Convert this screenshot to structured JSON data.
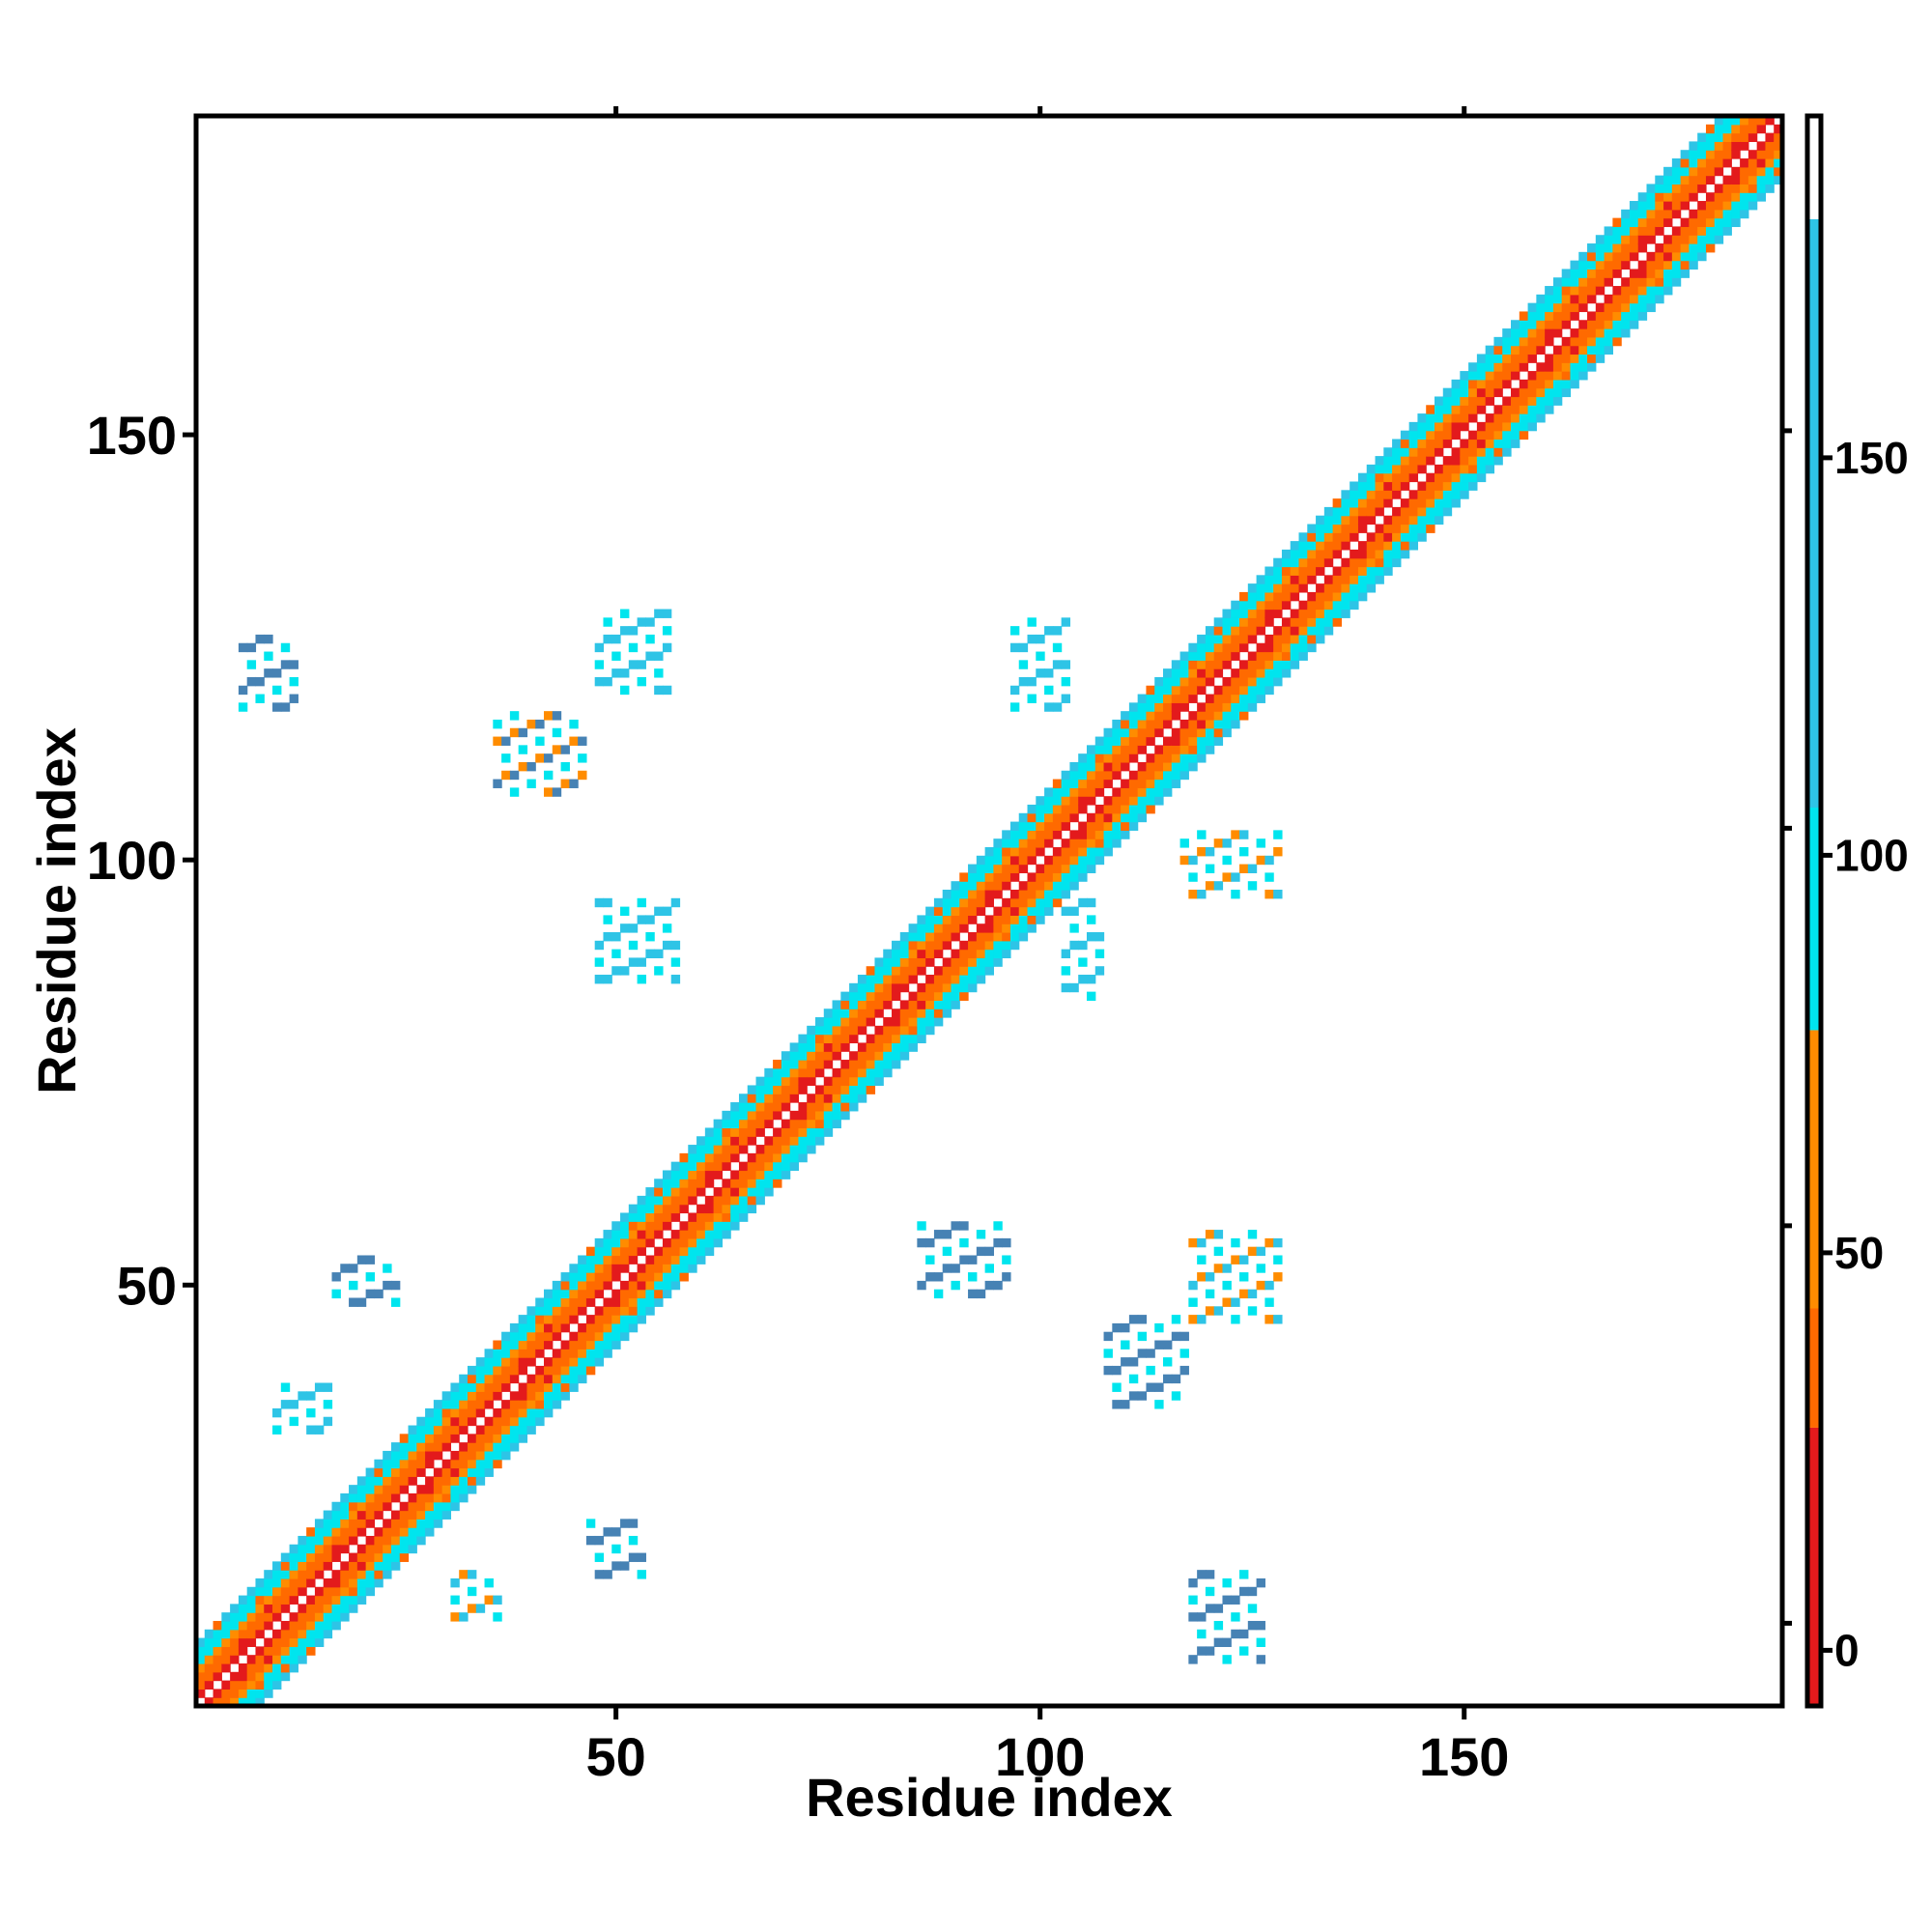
{
  "chart_data": {
    "type": "heatmap",
    "xlabel": "Residue index",
    "ylabel": "Residue index",
    "xlim": [
      1,
      187
    ],
    "ylim": [
      1,
      187
    ],
    "x_ticks": [
      50,
      100,
      150
    ],
    "y_ticks": [
      50,
      100,
      150
    ],
    "colorbar": {
      "ticks": [
        0,
        50,
        100,
        150
      ],
      "range": [
        -7,
        193
      ],
      "bands": [
        {
          "from": -7,
          "to": 28,
          "color": "#e31a1c"
        },
        {
          "from": 28,
          "to": 43,
          "color": "#ff6a00"
        },
        {
          "from": 43,
          "to": 78,
          "color": "#ff8c00"
        },
        {
          "from": 78,
          "to": 106,
          "color": "#00e5ee"
        },
        {
          "from": 106,
          "to": 180,
          "color": "#2ec4e6"
        },
        {
          "from": 180,
          "to": 193,
          "color": "#ffffff"
        }
      ]
    },
    "diagonal_band": {
      "from": 1,
      "to": 187,
      "half_width": 7
    },
    "series": [
      {
        "kind": "band-cells",
        "color": "#e31a1c",
        "offsets": [
          1
        ]
      },
      {
        "kind": "band-cells",
        "color": "#ff6a00",
        "offsets": [
          2,
          3
        ]
      },
      {
        "kind": "band-cells",
        "color": "#ff8c00",
        "offsets": [
          4
        ]
      },
      {
        "kind": "band-cells",
        "color": "#00e5ee",
        "offsets": [
          5,
          6
        ]
      },
      {
        "kind": "band-cells",
        "color": "#2ec4e6",
        "offsets": [
          7
        ]
      }
    ],
    "off_diagonal_clusters": [
      {
        "x": [
          6,
          12
        ],
        "y": [
          118,
          126
        ],
        "color": "#4682b4"
      },
      {
        "x": [
          36,
          46
        ],
        "y": [
          108,
          117
        ],
        "color": "#4682b4"
      },
      {
        "x": [
          48,
          56
        ],
        "y": [
          120,
          129
        ],
        "color": "#2ec4e6"
      },
      {
        "x": [
          48,
          57
        ],
        "y": [
          86,
          95
        ],
        "color": "#2ec4e6"
      },
      {
        "x": [
          97,
          103
        ],
        "y": [
          118,
          128
        ],
        "color": "#2ec4e6"
      },
      {
        "x": [
          117,
          128
        ],
        "y": [
          96,
          103
        ],
        "color": "#2ec4e6"
      },
      {
        "x": [
          103,
          107
        ],
        "y": [
          84,
          95
        ],
        "color": "#2ec4e6"
      },
      {
        "x": [
          86,
          96
        ],
        "y": [
          49,
          57
        ],
        "color": "#4682b4"
      },
      {
        "x": [
          108,
          117
        ],
        "y": [
          36,
          46
        ],
        "color": "#4682b4"
      },
      {
        "x": [
          118,
          128
        ],
        "y": [
          46,
          56
        ],
        "color": "#2ec4e6"
      },
      {
        "x": [
          118,
          126
        ],
        "y": [
          6,
          16
        ],
        "color": "#4682b4"
      },
      {
        "x": [
          17,
          24
        ],
        "y": [
          48,
          53
        ],
        "color": "#4682b4"
      },
      {
        "x": [
          10,
          16
        ],
        "y": [
          33,
          38
        ],
        "color": "#2ec4e6"
      },
      {
        "x": [
          31,
          36
        ],
        "y": [
          11,
          16
        ],
        "color": "#2ec4e6"
      },
      {
        "x": [
          47,
          53
        ],
        "y": [
          16,
          22
        ],
        "color": "#4682b4"
      }
    ]
  }
}
